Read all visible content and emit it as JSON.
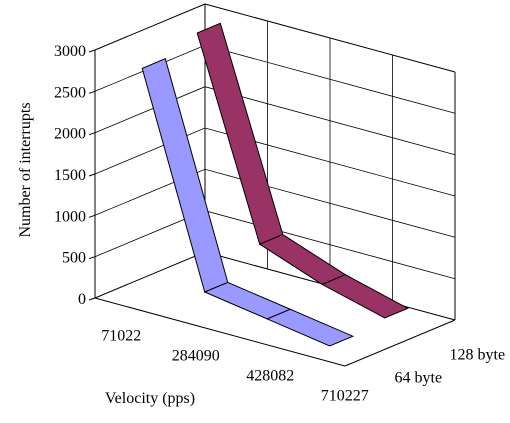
{
  "chart_data": {
    "type": "line",
    "variant": "3d-ribbon",
    "title": "",
    "ylabel": "Number of interrupts",
    "xlabel": "Velocity (pps)",
    "categories": [
      "71022",
      "284090",
      "428082",
      "710227"
    ],
    "y_ticks": [
      "0",
      "500",
      "1000",
      "1500",
      "2000",
      "2500",
      "3000"
    ],
    "ylim": [
      0,
      3000
    ],
    "grid": true,
    "series": [
      {
        "name": "64 byte",
        "color": "#9999ff",
        "values": [
          2800,
          300,
          180,
          60
        ]
      },
      {
        "name": "128 byte",
        "color": "#993366",
        "values": [
          2950,
          600,
          320,
          120
        ]
      }
    ]
  }
}
